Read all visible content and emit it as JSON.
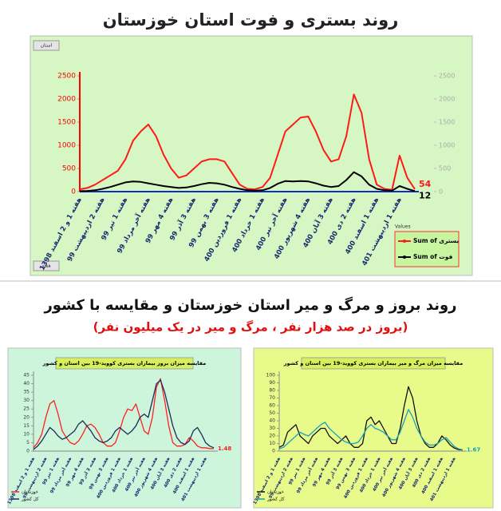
{
  "chart_data": [
    {
      "type": "line",
      "title": "روند بستری و فوت استان خوزستان",
      "filters": [
        "استان",
        "هفته"
      ],
      "legend_title": "Values",
      "categories": [
        "هفته 1 و 2 اسفند 1398",
        null,
        null,
        "هفته 2 اردیبهشت 99",
        null,
        null,
        "هفته 1 تیر 99",
        null,
        null,
        "هفته آخر مرداد 99",
        null,
        null,
        "هفته 4 مهر 99",
        null,
        null,
        "هفته 3 آذر 99",
        null,
        null,
        "هفته 3 بهمن 99",
        null,
        null,
        "هفته 1 فروردین 400",
        null,
        null,
        "هفته 1 خرداد 400",
        null,
        null,
        "هفته آخر تیر 400",
        null,
        null,
        "هفته 4 شهریور 400",
        null,
        null,
        "هفته 3 آبان 400",
        null,
        null,
        "هفته 2 دی 400",
        null,
        null,
        "هفته 1 اسفند 400",
        null,
        null,
        "هفته 1 اردیبهشت 401",
        null,
        null
      ],
      "series": [
        {
          "name": "Sum of بستری",
          "color": "#ff1a1a",
          "end_label": true,
          "values": [
            50,
            80,
            150,
            250,
            350,
            450,
            700,
            1100,
            1300,
            1450,
            1200,
            800,
            500,
            300,
            350,
            500,
            650,
            700,
            700,
            650,
            400,
            150,
            60,
            50,
            100,
            300,
            800,
            1300,
            1450,
            1600,
            1620,
            1300,
            900,
            650,
            700,
            1200,
            2100,
            1700,
            700,
            150,
            60,
            40,
            780,
            300,
            54
          ]
        },
        {
          "name": "Sum of فوت",
          "color": "#000000",
          "end_label": true,
          "values": [
            10,
            15,
            30,
            60,
            100,
            150,
            200,
            220,
            210,
            180,
            150,
            120,
            100,
            80,
            90,
            120,
            160,
            190,
            180,
            150,
            100,
            60,
            30,
            20,
            30,
            80,
            170,
            230,
            220,
            230,
            220,
            180,
            130,
            100,
            120,
            250,
            420,
            330,
            150,
            60,
            30,
            20,
            120,
            60,
            12
          ]
        }
      ],
      "ylim": [
        0,
        2500
      ],
      "yticks": [
        0,
        500,
        1000,
        1500,
        2000,
        2500
      ],
      "y2lim": [
        0,
        2500
      ],
      "y2ticks": [
        0,
        500,
        1000,
        1500,
        2000,
        2500
      ],
      "yaxis_color": "#ff0000",
      "background": "#d6f7c4"
    },
    {
      "type": "line",
      "title": "مقایسه میزان بروز بیماران بستری کووید-19 بین استان و کشور",
      "categories": [
        "هفته 1 و 2 اسفند 1398",
        null,
        null,
        "هفته 2 اردیبهشت 99",
        null,
        null,
        "هفته 1 تیر 99",
        null,
        null,
        "هفته آخر مرداد 99",
        null,
        null,
        "هفته 4 مهر 99",
        null,
        null,
        "هفته 3 آذر 99",
        null,
        null,
        "هفته 3 بهمن 99",
        null,
        null,
        "هفته 1 فروردین 400",
        null,
        null,
        "هفته 1 خرداد 400",
        null,
        null,
        "هفته آخر تیر 400",
        null,
        null,
        "هفته 4 شهریور 400",
        null,
        null,
        "هفته 3 آبان 400",
        null,
        null,
        "هفته 2 دی 400",
        null,
        null,
        "هفته 1 اسفند 400",
        null,
        null,
        "هفته 1 اردیبهشت 401",
        null,
        null
      ],
      "series": [
        {
          "name": "خوزستان",
          "color": "#ff2020",
          "end_label": true,
          "values": [
            2,
            5,
            10,
            20,
            28,
            30,
            22,
            12,
            8,
            5,
            4,
            6,
            10,
            15,
            16,
            14,
            10,
            5,
            3,
            3,
            5,
            12,
            20,
            25,
            24,
            28,
            20,
            12,
            10,
            20,
            38,
            43,
            30,
            15,
            5,
            3,
            3,
            4,
            8,
            6,
            3,
            2,
            2,
            1.5,
            1.48
          ]
        },
        {
          "name": "کل کشور",
          "color": "#1f2a5a",
          "values": [
            1,
            3,
            6,
            10,
            14,
            12,
            9,
            7,
            8,
            10,
            12,
            16,
            18,
            15,
            12,
            8,
            6,
            5,
            6,
            8,
            12,
            14,
            12,
            10,
            12,
            15,
            20,
            22,
            20,
            30,
            40,
            42,
            35,
            25,
            15,
            8,
            5,
            4,
            6,
            12,
            14,
            10,
            5,
            3,
            2
          ]
        }
      ],
      "ylim": [
        0,
        45
      ],
      "yticks": [
        0,
        5,
        10,
        15,
        20,
        25,
        30,
        35,
        40,
        45
      ],
      "yaxis_color": "#333333",
      "background": "#ccf5dc"
    },
    {
      "type": "line",
      "title": "مقایسه میزان مرگ و میر بیماران بستری کووید-19 بین استان و کشور",
      "categories": [
        "هفته 1 و 2 اسفند 1398",
        null,
        null,
        "هفته 2 اردیبهشت 99",
        null,
        null,
        "هفته 1 تیر 99",
        null,
        null,
        "هفته آخر مرداد 99",
        null,
        null,
        "هفته 4 مهر 99",
        null,
        null,
        "هفته 3 آذر 99",
        null,
        null,
        "هفته 3 بهمن 99",
        null,
        null,
        "هفته 1 فروردین 400",
        null,
        null,
        "هفته 1 خرداد 400",
        null,
        null,
        "هفته آخر تیر 400",
        null,
        null,
        "هفته 4 شهریور 400",
        null,
        null,
        "هفته 3 آبان 400",
        null,
        null,
        "هفته 2 دی 400",
        null,
        null,
        "هفته 1 اسفند 400",
        null,
        null,
        "هفته 1 اردیبهشت 401",
        null,
        null
      ],
      "series": [
        {
          "name": "خوزستان",
          "color": "#111111",
          "values": [
            5,
            8,
            25,
            30,
            35,
            20,
            15,
            10,
            20,
            25,
            30,
            30,
            20,
            15,
            10,
            15,
            20,
            10,
            5,
            5,
            10,
            40,
            45,
            35,
            40,
            30,
            20,
            10,
            10,
            30,
            60,
            85,
            70,
            40,
            20,
            10,
            5,
            5,
            10,
            20,
            15,
            8,
            4,
            2,
            1.5
          ]
        },
        {
          "name": "کل کشور",
          "color": "#1aa0b8",
          "end_label": true,
          "values": [
            3,
            5,
            10,
            15,
            20,
            25,
            22,
            20,
            25,
            30,
            35,
            38,
            30,
            25,
            20,
            15,
            12,
            10,
            10,
            12,
            20,
            30,
            35,
            30,
            28,
            25,
            20,
            15,
            15,
            25,
            40,
            55,
            45,
            30,
            20,
            12,
            8,
            8,
            10,
            15,
            18,
            12,
            6,
            3,
            1.67
          ]
        }
      ],
      "ylim": [
        0,
        100
      ],
      "yticks": [
        0,
        10,
        20,
        30,
        40,
        50,
        60,
        70,
        80,
        90,
        100
      ],
      "yaxis_color": "#333333",
      "background": "#e8fb8a"
    }
  ],
  "section": {
    "title": "روند بروز و مرگ و میر استان خوزستان و مقایسه با کشور",
    "subtitle": "(بروز در صد هزار نفر ، مرگ و میر در یک میلیون نفر)"
  }
}
